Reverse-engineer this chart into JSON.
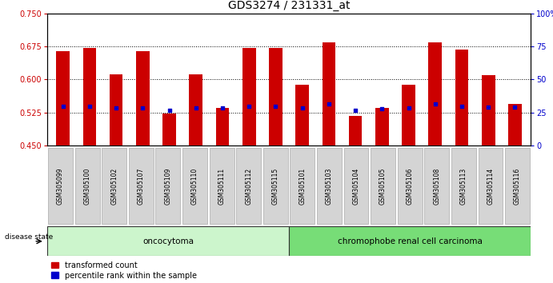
{
  "title": "GDS3274 / 231331_at",
  "samples": [
    "GSM305099",
    "GSM305100",
    "GSM305102",
    "GSM305107",
    "GSM305109",
    "GSM305110",
    "GSM305111",
    "GSM305112",
    "GSM305115",
    "GSM305101",
    "GSM305103",
    "GSM305104",
    "GSM305105",
    "GSM305106",
    "GSM305108",
    "GSM305113",
    "GSM305114",
    "GSM305116"
  ],
  "transformed_count": [
    0.665,
    0.672,
    0.612,
    0.665,
    0.523,
    0.612,
    0.535,
    0.672,
    0.672,
    0.588,
    0.685,
    0.518,
    0.535,
    0.588,
    0.685,
    0.668,
    0.61,
    0.545
  ],
  "percentile_rank": [
    0.54,
    0.54,
    0.535,
    0.535,
    0.53,
    0.535,
    0.535,
    0.54,
    0.54,
    0.535,
    0.545,
    0.53,
    0.533,
    0.535,
    0.545,
    0.54,
    0.538,
    0.537
  ],
  "baseline": 0.45,
  "ylim_left": [
    0.45,
    0.75
  ],
  "yticks_left": [
    0.45,
    0.525,
    0.6,
    0.675,
    0.75
  ],
  "grid_ticks": [
    0.525,
    0.6,
    0.675
  ],
  "ylim_right": [
    0,
    100
  ],
  "yticks_right": [
    0,
    25,
    50,
    75,
    100
  ],
  "group1_label": "oncocytoma",
  "group2_label": "chromophobe renal cell carcinoma",
  "group1_count": 9,
  "group2_count": 9,
  "bar_color": "#cc0000",
  "dot_color": "#0000cc",
  "bar_width": 0.5,
  "xtick_bg": "#d4d4d4",
  "group1_bg": "#ccf5cc",
  "group2_bg": "#77dd77",
  "disease_state_label": "disease state",
  "legend1": "transformed count",
  "legend2": "percentile rank within the sample",
  "title_fontsize": 10,
  "tick_fontsize": 7,
  "xtick_fontsize": 5.5
}
